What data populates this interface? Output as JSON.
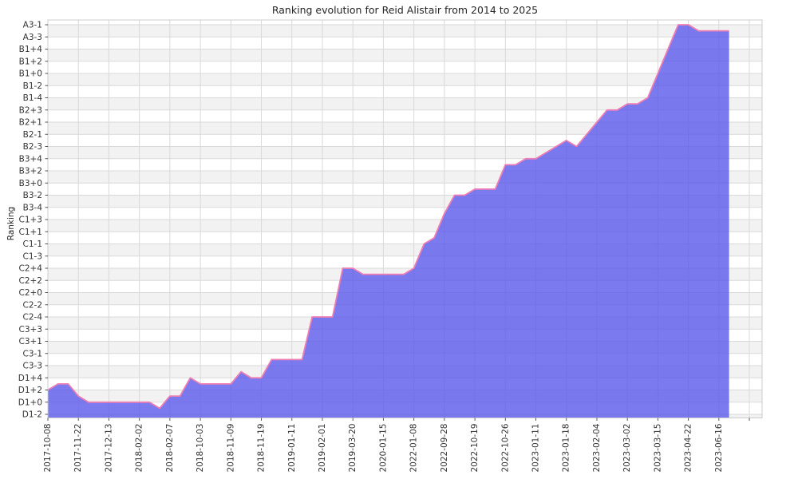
{
  "figure": {
    "title": "Ranking evolution for Reid Alistair from 2014 to 2025",
    "y_axis_label": "Ranking"
  },
  "chart_data": {
    "type": "area",
    "title": "Ranking evolution for Reid Alistair from 2014 to 2025",
    "xlabel": "",
    "ylabel": "Ranking",
    "legend": false,
    "grid": true,
    "y_tick_labels_top_to_bottom": [
      "A3-1",
      "A3-3",
      "B1+4",
      "B1+2",
      "B1+0",
      "B1-2",
      "B1-4",
      "B2+3",
      "B2+1",
      "B2-1",
      "B2-3",
      "B3+4",
      "B3+2",
      "B3+0",
      "B3-2",
      "B3-4",
      "C1+3",
      "C1+1",
      "C1-1",
      "C1-3",
      "C2+4",
      "C2+2",
      "C2+0",
      "C2-2",
      "C2-4",
      "C3+3",
      "C3+1",
      "C3-1",
      "C3-3",
      "D1+4",
      "D1+2",
      "D1+0",
      "D1-2"
    ],
    "y_steps_per_labeled_tick": 2,
    "x_tick_labels": [
      "2017-10-08",
      "2017-11-22",
      "2017-12-13",
      "2018-02-02",
      "2018-02-07",
      "2018-10-03",
      "2018-11-09",
      "2018-11-19",
      "2019-01-11",
      "2019-02-01",
      "2019-03-20",
      "2020-01-15",
      "2022-01-08",
      "2022-09-28",
      "2022-10-19",
      "2022-10-26",
      "2023-01-11",
      "2023-01-18",
      "2023-02-04",
      "2023-03-02",
      "2023-03-15",
      "2023-04-22",
      "2023-06-16"
    ],
    "points_per_tick": 3,
    "n_points": 68,
    "series": [
      {
        "name": "ranking",
        "values_step": [
          4,
          5,
          5,
          3,
          2,
          2,
          2,
          2,
          2,
          2,
          2,
          1,
          3,
          3,
          6,
          5,
          5,
          5,
          5,
          7,
          6,
          6,
          9,
          9,
          9,
          9,
          16,
          16,
          16,
          24,
          24,
          23,
          23,
          23,
          23,
          23,
          24,
          28,
          29,
          33,
          36,
          36,
          37,
          37,
          37,
          41,
          41,
          42,
          42,
          43,
          44,
          45,
          44,
          46,
          48,
          50,
          50,
          51,
          51,
          52,
          56,
          60,
          64,
          64,
          63,
          63,
          63,
          63
        ],
        "values_rank": [
          "D1+2",
          "D1+3",
          "D1+3",
          "D1+1",
          "D1+0",
          "D1+0",
          "D1+0",
          "D1+0",
          "D1+0",
          "D1+0",
          "D1+0",
          "D1-1",
          "D1+1",
          "D1+1",
          "D1+4",
          "D1+3",
          "D1+3",
          "D1+3",
          "D1+3",
          "D1+5",
          "D1+4",
          "D1+4",
          "C3-2",
          "C3-2",
          "C3-2",
          "C3-2",
          "C2-4",
          "C2-4",
          "C2-4",
          "C2+4",
          "C2+4",
          "C2+3",
          "C2+3",
          "C2+3",
          "C2+3",
          "C2+3",
          "C2+4",
          "C1-1",
          "C1+0",
          "C1+4",
          "B3-2",
          "B3-2",
          "B3-1",
          "B3-1",
          "B3-1",
          "B3+3",
          "B3+3",
          "B3+4",
          "B3+4",
          "B3+5",
          "B2-3",
          "B2-2",
          "B2-3",
          "B2-1",
          "B2+1",
          "B2+3",
          "B2+3",
          "B2+4",
          "B2+4",
          "B1-4",
          "B1+0",
          "B1+4",
          "A3-1",
          "A3-1",
          "A3-2",
          "A3-2",
          "A3-2",
          "A3-2"
        ]
      }
    ],
    "colors": {
      "area_fill_rgba": "rgba(90,89,234,0.8)",
      "area_fill_over_white": "#7b7aee",
      "line": "#ef7fb3",
      "band_gray": "#f2f2f2",
      "band_white": "#ffffff",
      "gridline": "#d9d9d9",
      "border": "#cccccc",
      "tick_mark": "#555555",
      "text": "#333333"
    }
  }
}
